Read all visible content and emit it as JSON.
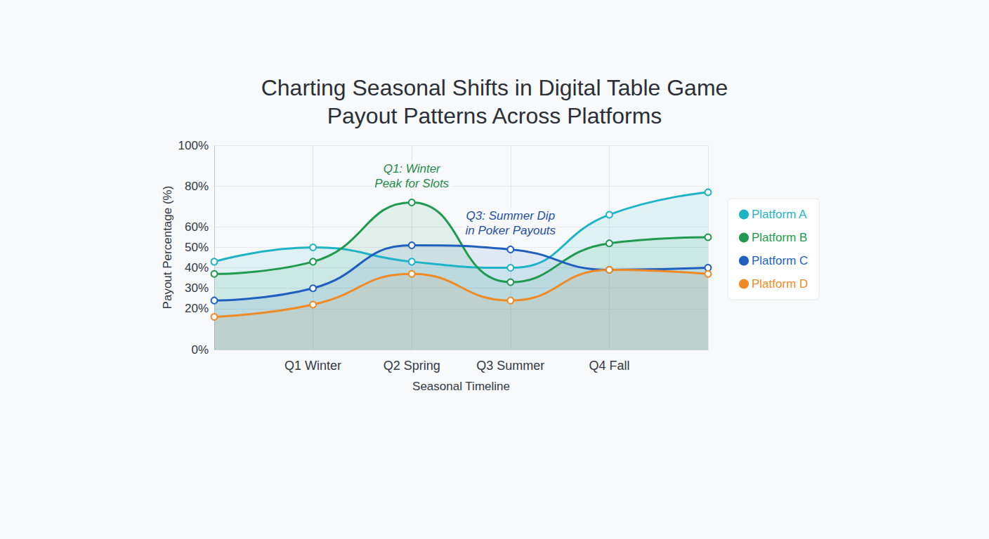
{
  "chart_data": {
    "type": "line",
    "title": "Charting Seasonal Shifts in Digital Table Game Payout Patterns Across Platforms",
    "x_label": "Seasonal Timeline",
    "y_label": "Payout Percentage (%)",
    "categories": [
      null,
      "Q1 Winter",
      "Q2 Spring",
      "Q3 Summer",
      "Q4 Fall",
      null
    ],
    "series": [
      {
        "name": "Platform A",
        "color": "#1fb3c6",
        "values": [
          43,
          50,
          43,
          40,
          66,
          77
        ]
      },
      {
        "name": "Platform B",
        "color": "#1f9a4e",
        "values": [
          37,
          43,
          72,
          33,
          52,
          55
        ]
      },
      {
        "name": "Platform C",
        "color": "#1f5fbf",
        "values": [
          24,
          30,
          51,
          49,
          39,
          40
        ]
      },
      {
        "name": "Platform D",
        "color": "#f08a24",
        "values": [
          16,
          22,
          37,
          24,
          39,
          37
        ]
      }
    ],
    "annotations": [
      {
        "text": "Q1: Winter\nPeak for Slots",
        "color": "#1f8a45"
      },
      {
        "text": "Q3: Summer Dip\nin Poker Payouts",
        "color": "#1f4f9f"
      }
    ],
    "ylim": [
      0,
      100
    ],
    "yticks": [
      {
        "value": 0,
        "label": "0%"
      },
      {
        "value": 20,
        "label": "20%"
      },
      {
        "value": 30,
        "label": "30%"
      },
      {
        "value": 40,
        "label": "40%"
      },
      {
        "value": 50,
        "label": "50%"
      },
      {
        "value": 60,
        "label": "60%"
      },
      {
        "value": 80,
        "label": "80%"
      },
      {
        "value": 100,
        "label": "100%"
      }
    ],
    "grid": true,
    "legend": "right",
    "marker": "circle"
  }
}
